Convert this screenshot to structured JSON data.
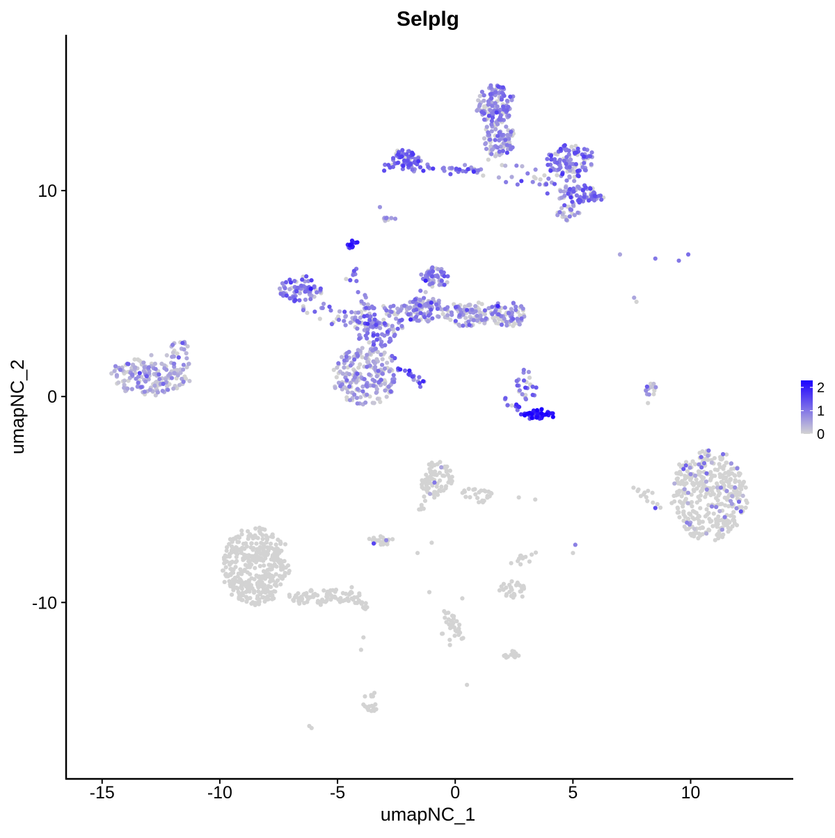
{
  "chart_data": {
    "type": "scatter",
    "title": "Selplg",
    "xlabel": "umapNC_1",
    "ylabel": "umapNC_2",
    "xlim": [
      -16.5,
      14.3
    ],
    "ylim": [
      -18.5,
      17.5
    ],
    "xticks": [
      -15,
      -10,
      -5,
      0,
      5,
      10
    ],
    "yticks": [
      -10,
      0,
      10
    ],
    "grid": false,
    "legend": {
      "position": "right",
      "type": "colorbar",
      "labels": [
        "2",
        "1",
        "0"
      ],
      "low_color": "#d3d3d3",
      "high_color": "#1c00ff",
      "min": 0,
      "max": 2.3
    },
    "clusters": [
      {
        "cx": -13.0,
        "cy": 1.0,
        "rx": 1.6,
        "ry": 0.9,
        "n": 170,
        "expr": 0.45,
        "pexpr": 0.8
      },
      {
        "cx": -11.7,
        "cy": 2.0,
        "rx": 0.5,
        "ry": 0.7,
        "n": 25,
        "expr": 0.5,
        "pexpr": 0.8
      },
      {
        "cx": -6.6,
        "cy": 5.2,
        "rx": 0.9,
        "ry": 0.6,
        "n": 70,
        "expr": 0.9,
        "pexpr": 0.9
      },
      {
        "cx": -3.8,
        "cy": 1.0,
        "rx": 1.3,
        "ry": 1.4,
        "n": 210,
        "expr": 0.5,
        "pexpr": 0.75
      },
      {
        "cx": -3.2,
        "cy": 3.5,
        "rx": 1.1,
        "ry": 1.0,
        "n": 90,
        "expr": 0.8,
        "pexpr": 0.8
      },
      {
        "cx": -4.4,
        "cy": 7.4,
        "rx": 0.2,
        "ry": 0.2,
        "n": 18,
        "expr": 1.7,
        "pexpr": 1.0
      },
      {
        "cx": -2.8,
        "cy": 8.6,
        "rx": 0.2,
        "ry": 0.15,
        "n": 10,
        "expr": 0.6,
        "pexpr": 0.7
      },
      {
        "cx": -1.4,
        "cy": 4.2,
        "rx": 0.9,
        "ry": 0.6,
        "n": 90,
        "expr": 0.7,
        "pexpr": 0.8
      },
      {
        "cx": -0.9,
        "cy": 5.8,
        "rx": 0.5,
        "ry": 0.5,
        "n": 45,
        "expr": 0.9,
        "pexpr": 0.85
      },
      {
        "cx": 0.5,
        "cy": 4.0,
        "rx": 1.0,
        "ry": 0.6,
        "n": 90,
        "expr": 0.55,
        "pexpr": 0.65
      },
      {
        "cx": 2.2,
        "cy": 4.0,
        "rx": 0.8,
        "ry": 0.6,
        "n": 70,
        "expr": 0.8,
        "pexpr": 0.75
      },
      {
        "cx": -2.1,
        "cy": 11.6,
        "rx": 0.6,
        "ry": 0.4,
        "n": 60,
        "expr": 1.1,
        "pexpr": 0.9
      },
      {
        "cx": 1.7,
        "cy": 14.2,
        "rx": 0.8,
        "ry": 0.9,
        "n": 120,
        "expr": 0.8,
        "pexpr": 0.8
      },
      {
        "cx": 1.8,
        "cy": 12.5,
        "rx": 0.7,
        "ry": 0.8,
        "n": 80,
        "expr": 0.7,
        "pexpr": 0.75
      },
      {
        "cx": 4.9,
        "cy": 11.4,
        "rx": 1.0,
        "ry": 0.8,
        "n": 110,
        "expr": 0.9,
        "pexpr": 0.85
      },
      {
        "cx": 5.4,
        "cy": 9.8,
        "rx": 0.8,
        "ry": 0.4,
        "n": 60,
        "expr": 1.0,
        "pexpr": 0.9
      },
      {
        "cx": 4.8,
        "cy": 8.9,
        "rx": 0.5,
        "ry": 0.4,
        "n": 25,
        "expr": 0.6,
        "pexpr": 0.7
      },
      {
        "cx": 3.0,
        "cy": 0.5,
        "rx": 0.4,
        "ry": 0.7,
        "n": 25,
        "expr": 1.0,
        "pexpr": 0.8
      },
      {
        "cx": 3.5,
        "cy": -0.9,
        "rx": 0.7,
        "ry": 0.2,
        "n": 45,
        "expr": 1.9,
        "pexpr": 1.0
      },
      {
        "cx": 8.3,
        "cy": 0.3,
        "rx": 0.2,
        "ry": 0.6,
        "n": 18,
        "expr": 0.7,
        "pexpr": 0.7
      },
      {
        "cx": 10.8,
        "cy": -4.8,
        "rx": 1.6,
        "ry": 2.2,
        "n": 380,
        "expr": 0.7,
        "pexpr": 0.12
      },
      {
        "cx": -8.5,
        "cy": -8.2,
        "rx": 1.4,
        "ry": 1.9,
        "n": 380,
        "expr": 0.5,
        "pexpr": 0.0
      },
      {
        "cx": -5.8,
        "cy": -9.7,
        "rx": 1.4,
        "ry": 0.4,
        "n": 70,
        "expr": 0.5,
        "pexpr": 0.0
      },
      {
        "cx": -0.8,
        "cy": -4.0,
        "rx": 0.7,
        "ry": 0.8,
        "n": 75,
        "expr": 0.8,
        "pexpr": 0.06
      },
      {
        "cx": 0.9,
        "cy": -4.8,
        "rx": 0.6,
        "ry": 0.4,
        "n": 25,
        "expr": 0.5,
        "pexpr": 0.0
      },
      {
        "cx": -3.2,
        "cy": -7.0,
        "rx": 0.5,
        "ry": 0.25,
        "n": 25,
        "expr": 0.8,
        "pexpr": 0.08
      },
      {
        "cx": 2.4,
        "cy": -9.4,
        "rx": 0.5,
        "ry": 0.4,
        "n": 30,
        "expr": 0.8,
        "pexpr": 0.06
      },
      {
        "cx": 2.4,
        "cy": -12.5,
        "rx": 0.5,
        "ry": 0.15,
        "n": 15,
        "expr": 0.5,
        "pexpr": 0.0
      },
      {
        "cx": -3.6,
        "cy": -14.9,
        "rx": 0.25,
        "ry": 0.5,
        "n": 20,
        "expr": 0.8,
        "pexpr": 0.05
      },
      {
        "cx": -0.2,
        "cy": -11.4,
        "rx": 0.4,
        "ry": 0.7,
        "n": 18,
        "expr": 0.5,
        "pexpr": 0.0
      }
    ],
    "paths": [
      {
        "from": [
          -6.8,
          4.4
        ],
        "to": [
          -3.5,
          3.5
        ],
        "n": 40,
        "spread": 0.25,
        "expr": 0.8,
        "pexpr": 0.85
      },
      {
        "from": [
          -4.6,
          6.5
        ],
        "to": [
          -3.3,
          2.8
        ],
        "n": 30,
        "spread": 0.15,
        "expr": 0.9,
        "pexpr": 0.9
      },
      {
        "from": [
          -2.8,
          1.8
        ],
        "to": [
          -1.3,
          0.6
        ],
        "n": 22,
        "spread": 0.08,
        "expr": 1.2,
        "pexpr": 0.95
      },
      {
        "from": [
          -3.0,
          11.2
        ],
        "to": [
          1.0,
          11.0
        ],
        "n": 45,
        "spread": 0.12,
        "expr": 1.1,
        "pexpr": 0.9
      },
      {
        "from": [
          1.2,
          11.3
        ],
        "to": [
          5.0,
          10.0
        ],
        "n": 40,
        "spread": 0.3,
        "expr": 0.7,
        "pexpr": 0.75
      },
      {
        "from": [
          -1.7,
          4.0
        ],
        "to": [
          -0.7,
          5.9
        ],
        "n": 20,
        "spread": 0.2,
        "expr": 0.8,
        "pexpr": 0.85
      },
      {
        "from": [
          -4.5,
          -9.4
        ],
        "to": [
          -3.8,
          -10.3
        ],
        "n": 25,
        "spread": 0.12,
        "expr": 0.5,
        "pexpr": 0.0
      },
      {
        "from": [
          -1.5,
          -5.6
        ],
        "to": [
          -1.2,
          -4.3
        ],
        "n": 10,
        "spread": 0.08,
        "expr": 0.5,
        "pexpr": 0.0
      },
      {
        "from": [
          -0.5,
          -10.3
        ],
        "to": [
          0.3,
          -11.8
        ],
        "n": 14,
        "spread": 0.08,
        "expr": 0.5,
        "pexpr": 0.0
      },
      {
        "from": [
          2.5,
          -8.2
        ],
        "to": [
          3.3,
          -7.5
        ],
        "n": 12,
        "spread": 0.15,
        "expr": 0.5,
        "pexpr": 0.0
      },
      {
        "from": [
          7.7,
          -4.3
        ],
        "to": [
          8.6,
          -5.5
        ],
        "n": 14,
        "spread": 0.15,
        "expr": 0.8,
        "pexpr": 0.15
      },
      {
        "from": [
          2.0,
          -0.2
        ],
        "to": [
          2.9,
          -0.7
        ],
        "n": 10,
        "spread": 0.1,
        "expr": 1.3,
        "pexpr": 0.9
      }
    ],
    "isolated_points": [
      {
        "x": -1.0,
        "y": -7.1,
        "v": 0.0
      },
      {
        "x": -1.6,
        "y": -7.6,
        "v": 0.0
      },
      {
        "x": -1.1,
        "y": -9.5,
        "v": 0.0
      },
      {
        "x": 5.1,
        "y": -7.2,
        "v": 0.9
      },
      {
        "x": 5.0,
        "y": -7.6,
        "v": 0.0
      },
      {
        "x": 3.4,
        "y": -5.0,
        "v": 0.0
      },
      {
        "x": -6.2,
        "y": -16.0,
        "v": 0.0
      },
      {
        "x": -6.1,
        "y": -16.1,
        "v": 0.0
      },
      {
        "x": 0.5,
        "y": -14.0,
        "v": 0.0
      },
      {
        "x": -4.0,
        "y": -12.3,
        "v": 0.0
      },
      {
        "x": 7.0,
        "y": 6.9,
        "v": 0.5
      },
      {
        "x": 8.5,
        "y": 6.7,
        "v": 1.0
      },
      {
        "x": 9.5,
        "y": 6.6,
        "v": 1.0
      },
      {
        "x": 9.9,
        "y": 6.9,
        "v": 1.1
      },
      {
        "x": 7.6,
        "y": 4.8,
        "v": 0.5
      },
      {
        "x": 7.7,
        "y": 4.6,
        "v": 0.0
      },
      {
        "x": -1.1,
        "y": 6.0,
        "v": 1.2
      },
      {
        "x": -3.2,
        "y": 9.2,
        "v": 0.7
      },
      {
        "x": -4.2,
        "y": 6.2,
        "v": 1.0
      },
      {
        "x": 0.3,
        "y": -9.8,
        "v": 0.0
      },
      {
        "x": -3.9,
        "y": -11.7,
        "v": 0.0
      },
      {
        "x": 2.7,
        "y": -4.9,
        "v": 0.0
      }
    ]
  }
}
